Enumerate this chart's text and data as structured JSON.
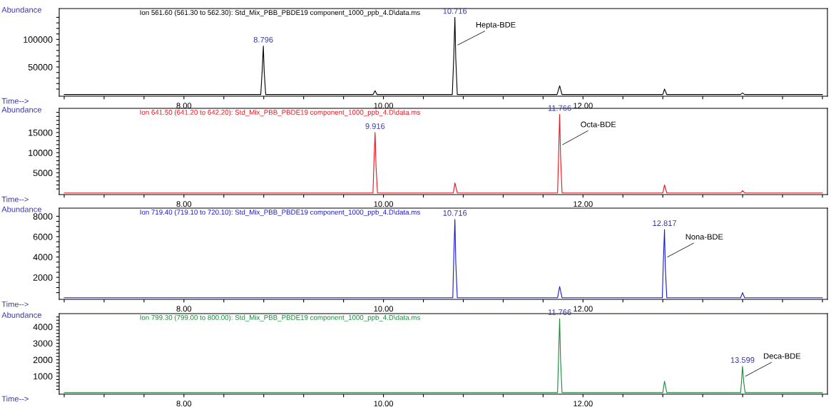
{
  "chart_data": [
    {
      "type": "line",
      "title": "Ion 561.60 (561.30 to 562.30): Std_Mix_PBB_PBDE19 component_1000_ppb_4.D\\data.ms",
      "xlabel": "Time-->",
      "ylabel": "Abundance",
      "grid": false,
      "legend": false,
      "xlim": [
        6.75,
        14.45
      ],
      "xticks": [
        {
          "value": 6.8,
          "label": null
        },
        {
          "value": 7.2,
          "label": null
        },
        {
          "value": 7.6,
          "label": null
        },
        {
          "value": 8.0,
          "label": "8.00"
        },
        {
          "value": 8.4,
          "label": null
        },
        {
          "value": 8.8,
          "label": null
        },
        {
          "value": 9.2,
          "label": null
        },
        {
          "value": 9.6,
          "label": null
        },
        {
          "value": 10.0,
          "label": "10.00"
        },
        {
          "value": 10.4,
          "label": null
        },
        {
          "value": 10.8,
          "label": null
        },
        {
          "value": 11.2,
          "label": null
        },
        {
          "value": 11.6,
          "label": null
        },
        {
          "value": 12.0,
          "label": "12.00"
        },
        {
          "value": 12.4,
          "label": null
        },
        {
          "value": 12.8,
          "label": null
        },
        {
          "value": 13.2,
          "label": null
        },
        {
          "value": 13.6,
          "label": null
        },
        {
          "value": 14.0,
          "label": null
        },
        {
          "value": 14.4,
          "label": null
        }
      ],
      "ylim": [
        -3000,
        156000
      ],
      "yticks": [
        {
          "value": 10000,
          "label": null
        },
        {
          "value": 20000,
          "label": null
        },
        {
          "value": 30000,
          "label": null
        },
        {
          "value": 40000,
          "label": null
        },
        50000,
        {
          "value": 60000,
          "label": null
        },
        {
          "value": 70000,
          "label": null
        },
        {
          "value": 80000,
          "label": null
        },
        {
          "value": 90000,
          "label": null
        },
        100000,
        {
          "value": 110000,
          "label": null
        },
        {
          "value": 120000,
          "label": null
        },
        {
          "value": 130000,
          "label": null
        },
        {
          "value": 140000,
          "label": null
        }
      ],
      "series": [
        {
          "color": "#000000",
          "x": [
            6.8,
            8.77,
            8.785,
            8.796,
            8.805,
            8.82,
            9.895,
            9.916,
            9.935,
            10.69,
            10.705,
            10.716,
            10.725,
            10.74,
            11.74,
            11.766,
            11.79,
            12.8,
            12.817,
            12.84,
            13.58,
            13.599,
            13.62,
            14.4
          ],
          "values": [
            0,
            0,
            45000,
            88000,
            40000,
            0,
            0,
            7000,
            0,
            0,
            70000,
            140000,
            65000,
            0,
            0,
            16000,
            0,
            0,
            10000,
            0,
            0,
            3000,
            0,
            0
          ]
        }
      ],
      "annotations": [
        {
          "text": "8.796",
          "x": 8.796,
          "y": 88000
        },
        {
          "text": "10.716",
          "x": 10.716,
          "y": 140000
        },
        {
          "text": "Hepta-BDE",
          "x": 10.716,
          "y": 90000
        }
      ]
    },
    {
      "type": "line",
      "title": "Ion 641.50 (641.20 to 642.20): Std_Mix_PBB_PBDE19 component_1000_ppb_4.D\\data.ms",
      "xlabel": "Time-->",
      "ylabel": "Abundance",
      "grid": false,
      "legend": false,
      "xlim": [
        6.75,
        14.45
      ],
      "xticks": [
        {
          "value": 6.8,
          "label": null
        },
        {
          "value": 7.2,
          "label": null
        },
        {
          "value": 7.6,
          "label": null
        },
        {
          "value": 8.0,
          "label": "8.00"
        },
        {
          "value": 8.4,
          "label": null
        },
        {
          "value": 8.8,
          "label": null
        },
        {
          "value": 9.2,
          "label": null
        },
        {
          "value": 9.6,
          "label": null
        },
        {
          "value": 10.0,
          "label": "10.00"
        },
        {
          "value": 10.4,
          "label": null
        },
        {
          "value": 10.8,
          "label": null
        },
        {
          "value": 11.2,
          "label": null
        },
        {
          "value": 11.6,
          "label": null
        },
        {
          "value": 12.0,
          "label": "12.00"
        },
        {
          "value": 12.4,
          "label": null
        },
        {
          "value": 12.8,
          "label": null
        },
        {
          "value": 13.2,
          "label": null
        },
        {
          "value": 13.6,
          "label": null
        },
        {
          "value": 14.0,
          "label": null
        },
        {
          "value": 14.4,
          "label": null
        }
      ],
      "ylim": [
        -400,
        21000
      ],
      "yticks": [
        {
          "value": 1000,
          "label": null
        },
        {
          "value": 2000,
          "label": null
        },
        {
          "value": 3000,
          "label": null
        },
        {
          "value": 4000,
          "label": null
        },
        5000,
        {
          "value": 6000,
          "label": null
        },
        {
          "value": 7000,
          "label": null
        },
        {
          "value": 8000,
          "label": null
        },
        {
          "value": 9000,
          "label": null
        },
        10000,
        {
          "value": 11000,
          "label": null
        },
        {
          "value": 12000,
          "label": null
        },
        {
          "value": 13000,
          "label": null
        },
        {
          "value": 14000,
          "label": null
        },
        15000,
        {
          "value": 16000,
          "label": null
        },
        {
          "value": 17000,
          "label": null
        },
        {
          "value": 18000,
          "label": null
        },
        {
          "value": 19000,
          "label": null
        },
        {
          "value": 20000,
          "label": null
        }
      ],
      "series": [
        {
          "color": "#e8141e",
          "x": [
            6.8,
            9.895,
            9.905,
            9.916,
            9.925,
            9.94,
            10.7,
            10.716,
            10.74,
            11.745,
            11.755,
            11.766,
            11.775,
            11.79,
            12.8,
            12.817,
            12.84,
            13.58,
            13.599,
            13.62,
            14.4
          ],
          "values": [
            0,
            0,
            8000,
            15000,
            7000,
            0,
            0,
            2500,
            0,
            0,
            9000,
            19500,
            9000,
            0,
            0,
            2000,
            0,
            0,
            600,
            0,
            0
          ]
        }
      ],
      "annotations": [
        {
          "text": "9.916",
          "x": 9.916,
          "y": 15000
        },
        {
          "text": "11.766",
          "x": 11.766,
          "y": 19500
        },
        {
          "text": "Octa-BDE",
          "x": 11.766,
          "y": 12000
        }
      ]
    },
    {
      "type": "line",
      "title": "Ion 719.40 (719.10 to 720.10): Std_Mix_PBB_PBDE19 component_1000_ppb_4.D\\data.ms",
      "xlabel": "Time-->",
      "ylabel": "Abundance",
      "grid": false,
      "legend": false,
      "xlim": [
        6.75,
        14.45
      ],
      "xticks": [
        {
          "value": 6.8,
          "label": null
        },
        {
          "value": 7.2,
          "label": null
        },
        {
          "value": 7.6,
          "label": null
        },
        {
          "value": 8.0,
          "label": "8.00"
        },
        {
          "value": 8.4,
          "label": null
        },
        {
          "value": 8.8,
          "label": null
        },
        {
          "value": 9.2,
          "label": null
        },
        {
          "value": 9.6,
          "label": null
        },
        {
          "value": 10.0,
          "label": "10.00"
        },
        {
          "value": 10.4,
          "label": null
        },
        {
          "value": 10.8,
          "label": null
        },
        {
          "value": 11.2,
          "label": null
        },
        {
          "value": 11.6,
          "label": null
        },
        {
          "value": 12.0,
          "label": "12.00"
        },
        {
          "value": 12.4,
          "label": null
        },
        {
          "value": 12.8,
          "label": null
        },
        {
          "value": 13.2,
          "label": null
        },
        {
          "value": 13.6,
          "label": null
        },
        {
          "value": 14.0,
          "label": null
        },
        {
          "value": 14.4,
          "label": null
        }
      ],
      "ylim": [
        -160,
        8800
      ],
      "yticks": [
        {
          "value": 500,
          "label": null
        },
        {
          "value": 1000,
          "label": null
        },
        {
          "value": 1500,
          "label": null
        },
        2000,
        {
          "value": 2500,
          "label": null
        },
        {
          "value": 3000,
          "label": null
        },
        {
          "value": 3500,
          "label": null
        },
        4000,
        {
          "value": 4500,
          "label": null
        },
        {
          "value": 5000,
          "label": null
        },
        {
          "value": 5500,
          "label": null
        },
        6000,
        {
          "value": 6500,
          "label": null
        },
        {
          "value": 7000,
          "label": null
        },
        {
          "value": 7500,
          "label": null
        },
        8000
      ],
      "series": [
        {
          "color": "#1a1acc",
          "x": [
            6.8,
            10.695,
            10.705,
            10.716,
            10.725,
            10.74,
            11.745,
            11.766,
            11.79,
            12.795,
            12.805,
            12.817,
            12.825,
            12.84,
            13.58,
            13.599,
            13.62,
            14.4
          ],
          "values": [
            0,
            0,
            4000,
            7700,
            3500,
            0,
            0,
            1100,
            0,
            0,
            3500,
            6700,
            3000,
            0,
            0,
            500,
            0,
            0
          ]
        }
      ],
      "annotations": [
        {
          "text": "10.716",
          "x": 10.716,
          "y": 7700
        },
        {
          "text": "12.817",
          "x": 12.817,
          "y": 6700
        },
        {
          "text": "Nona-BDE",
          "x": 12.817,
          "y": 4000
        }
      ]
    },
    {
      "type": "line",
      "title": "Ion 799.30 (799.00 to 800.00): Std_Mix_PBB_PBDE19 component_1000_ppb_4.D\\data.ms",
      "xlabel": "Time-->",
      "ylabel": "Abundance",
      "grid": false,
      "legend": false,
      "xlim": [
        6.75,
        14.45
      ],
      "xticks": [
        {
          "value": 6.8,
          "label": null
        },
        {
          "value": 7.2,
          "label": null
        },
        {
          "value": 7.6,
          "label": null
        },
        {
          "value": 8.0,
          "label": "8.00"
        },
        {
          "value": 8.4,
          "label": null
        },
        {
          "value": 8.8,
          "label": null
        },
        {
          "value": 9.2,
          "label": null
        },
        {
          "value": 9.6,
          "label": null
        },
        {
          "value": 10.0,
          "label": "10.00"
        },
        {
          "value": 10.4,
          "label": null
        },
        {
          "value": 10.8,
          "label": null
        },
        {
          "value": 11.2,
          "label": null
        },
        {
          "value": 11.6,
          "label": null
        },
        {
          "value": 12.0,
          "label": "12.00"
        },
        {
          "value": 12.4,
          "label": null
        },
        {
          "value": 12.8,
          "label": null
        },
        {
          "value": 13.2,
          "label": null
        },
        {
          "value": 13.6,
          "label": null
        },
        {
          "value": 14.0,
          "label": null
        },
        {
          "value": 14.4,
          "label": null
        }
      ],
      "ylim": [
        -90,
        4800
      ],
      "yticks": [
        {
          "value": 200,
          "label": null
        },
        {
          "value": 400,
          "label": null
        },
        {
          "value": 600,
          "label": null
        },
        {
          "value": 800,
          "label": null
        },
        1000,
        {
          "value": 1200,
          "label": null
        },
        {
          "value": 1400,
          "label": null
        },
        {
          "value": 1600,
          "label": null
        },
        {
          "value": 1800,
          "label": null
        },
        2000,
        {
          "value": 2200,
          "label": null
        },
        {
          "value": 2400,
          "label": null
        },
        {
          "value": 2600,
          "label": null
        },
        {
          "value": 2800,
          "label": null
        },
        3000,
        {
          "value": 3200,
          "label": null
        },
        {
          "value": 3400,
          "label": null
        },
        {
          "value": 3600,
          "label": null
        },
        {
          "value": 3800,
          "label": null
        },
        4000,
        {
          "value": 4200,
          "label": null
        },
        {
          "value": 4400,
          "label": null
        },
        {
          "value": 4600,
          "label": null
        }
      ],
      "series": [
        {
          "color": "#1a8a3a",
          "x": [
            6.8,
            11.745,
            11.755,
            11.766,
            11.775,
            11.79,
            12.8,
            12.817,
            12.84,
            13.58,
            13.59,
            13.599,
            13.61,
            13.625,
            14.4
          ],
          "values": [
            0,
            0,
            2200,
            4500,
            2000,
            0,
            0,
            700,
            0,
            0,
            800,
            1600,
            700,
            0,
            0
          ]
        }
      ],
      "annotations": [
        {
          "text": "11.766",
          "x": 11.766,
          "y": 4500
        },
        {
          "text": "13.599",
          "x": 13.599,
          "y": 1600
        },
        {
          "text": "Deca-BDE",
          "x": 13.599,
          "y": 1000
        }
      ]
    }
  ]
}
